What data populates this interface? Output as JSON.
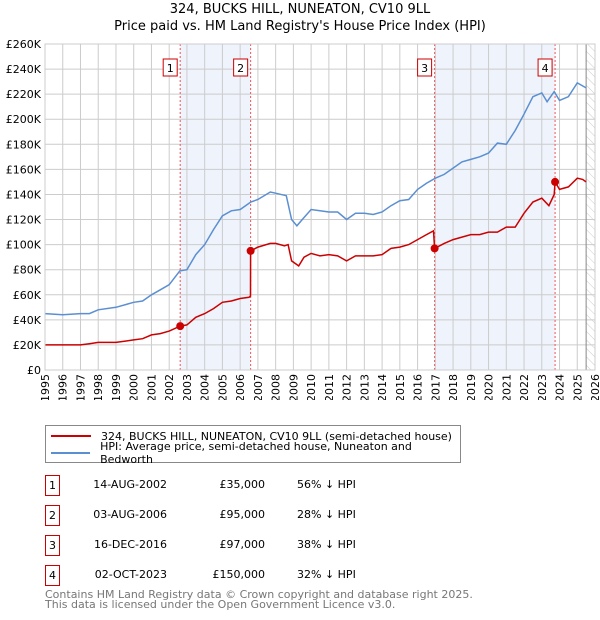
{
  "title": "324, BUCKS HILL, NUNEATON, CV10 9LL",
  "subtitle": "Price paid vs. HM Land Registry's House Price Index (HPI)",
  "colors": {
    "property": "#cc0000",
    "hpi": "#5b8fd1",
    "shade": "#eef3fc",
    "grid": "#cccccc"
  },
  "chart_data": {
    "type": "line",
    "title": "324, BUCKS HILL, NUNEATON, CV10 9LL — Price paid vs. HM Land Registry's House Price Index (HPI)",
    "xlim": [
      1995,
      2026
    ],
    "ylim": [
      0,
      260000
    ],
    "x_ticks": [
      "1995",
      "1996",
      "1997",
      "1998",
      "1999",
      "2000",
      "2001",
      "2002",
      "2003",
      "2004",
      "2005",
      "2006",
      "2007",
      "2008",
      "2009",
      "2010",
      "2011",
      "2012",
      "2013",
      "2014",
      "2015",
      "2016",
      "2017",
      "2018",
      "2019",
      "2020",
      "2021",
      "2022",
      "2023",
      "2024",
      "2025",
      "2026"
    ],
    "y_ticks": [
      {
        "v": 0,
        "label": "£0"
      },
      {
        "v": 20000,
        "label": "£20K"
      },
      {
        "v": 40000,
        "label": "£40K"
      },
      {
        "v": 60000,
        "label": "£60K"
      },
      {
        "v": 80000,
        "label": "£80K"
      },
      {
        "v": 100000,
        "label": "£100K"
      },
      {
        "v": 120000,
        "label": "£120K"
      },
      {
        "v": 140000,
        "label": "£140K"
      },
      {
        "v": 160000,
        "label": "£160K"
      },
      {
        "v": 180000,
        "label": "£180K"
      },
      {
        "v": 200000,
        "label": "£200K"
      },
      {
        "v": 220000,
        "label": "£220K"
      },
      {
        "v": 240000,
        "label": "£240K"
      },
      {
        "v": 260000,
        "label": "£260K"
      }
    ],
    "grid": true,
    "forecast_hatch_from": 2025.5,
    "shaded_ranges": [
      [
        2002.62,
        2006.59
      ],
      [
        2016.96,
        2023.75
      ]
    ],
    "series": [
      {
        "name": "324, BUCKS HILL, NUNEATON, CV10 9LL (semi-detached house)",
        "color": "#cc0000",
        "x": [
          1995,
          1996,
          1997,
          1997.5,
          1998,
          1999,
          2000,
          2000.5,
          2001,
          2001.5,
          2002,
          2002.62,
          2003,
          2003.5,
          2004,
          2004.5,
          2005,
          2005.5,
          2006,
          2006.5,
          2006.58,
          2006.59,
          2007,
          2007.7,
          2008,
          2008.5,
          2008.7,
          2008.9,
          2009.3,
          2009.6,
          2010,
          2010.5,
          2011,
          2011.5,
          2012,
          2012.5,
          2013,
          2013.5,
          2014,
          2014.5,
          2015,
          2015.5,
          2016,
          2016.5,
          2016.9,
          2016.96,
          2017.5,
          2018,
          2018.5,
          2019,
          2019.5,
          2020,
          2020.5,
          2021,
          2021.5,
          2022,
          2022.5,
          2023,
          2023.4,
          2023.7,
          2023.75,
          2024,
          2024.5,
          2025,
          2025.3,
          2025.5
        ],
        "y": [
          20000,
          20000,
          20000,
          21000,
          22000,
          22000,
          24000,
          25000,
          28000,
          29000,
          31000,
          35000,
          36000,
          42000,
          45000,
          49000,
          54000,
          55000,
          57000,
          58000,
          59000,
          95000,
          98000,
          101000,
          101000,
          99000,
          100000,
          87000,
          83000,
          90000,
          93000,
          91000,
          92000,
          91000,
          87000,
          91000,
          91000,
          91000,
          92000,
          97000,
          98000,
          100000,
          104000,
          108000,
          111000,
          97000,
          101000,
          104000,
          106000,
          108000,
          108000,
          110000,
          110000,
          114000,
          114000,
          125000,
          134000,
          137000,
          131000,
          140000,
          150000,
          144000,
          146000,
          153000,
          152000,
          150000
        ]
      },
      {
        "name": "HPI: Average price, semi-detached house, Nuneaton and Bedworth",
        "color": "#5b8fd1",
        "x": [
          1995,
          1996,
          1997,
          1997.5,
          1998,
          1999,
          2000,
          2000.5,
          2001,
          2001.5,
          2002,
          2002.6,
          2003,
          2003.5,
          2004,
          2004.5,
          2005,
          2005.5,
          2006,
          2006.6,
          2007,
          2007.7,
          2008,
          2008.6,
          2008.9,
          2009.2,
          2009.5,
          2010,
          2010.5,
          2011,
          2011.5,
          2012,
          2012.5,
          2013,
          2013.5,
          2014,
          2014.5,
          2015,
          2015.5,
          2016,
          2016.5,
          2017,
          2017.5,
          2018,
          2018.5,
          2019,
          2019.5,
          2020,
          2020.5,
          2021,
          2021.5,
          2022,
          2022.5,
          2023,
          2023.3,
          2023.7,
          2024,
          2024.5,
          2025,
          2025.5
        ],
        "y": [
          45000,
          44000,
          45000,
          45000,
          48000,
          50000,
          54000,
          55000,
          60000,
          64000,
          68000,
          79000,
          80000,
          92000,
          100000,
          112000,
          123000,
          127000,
          128000,
          134000,
          136000,
          142000,
          141000,
          139000,
          120000,
          115000,
          120000,
          128000,
          127000,
          126000,
          126000,
          120000,
          125000,
          125000,
          124000,
          126000,
          131000,
          135000,
          136000,
          144000,
          149000,
          153000,
          156000,
          161000,
          166000,
          168000,
          170000,
          173000,
          181000,
          180000,
          191000,
          204000,
          218000,
          221000,
          214000,
          222000,
          215000,
          218000,
          229000,
          225000
        ]
      }
    ],
    "legend": [
      "324, BUCKS HILL, NUNEATON, CV10 9LL (semi-detached house)",
      "HPI: Average price, semi-detached house, Nuneaton and Bedworth"
    ],
    "legend_placement": "below",
    "annotations": [
      {
        "label": "1",
        "x": 2002.62,
        "y": 35000
      },
      {
        "label": "2",
        "x": 2006.59,
        "y": 95000
      },
      {
        "label": "3",
        "x": 2016.96,
        "y": 97000
      },
      {
        "label": "4",
        "x": 2023.75,
        "y": 150000
      }
    ]
  },
  "transactions": [
    {
      "num": "1",
      "date": "14-AUG-2002",
      "price": "£35,000",
      "hpi": "56% ↓ HPI"
    },
    {
      "num": "2",
      "date": "03-AUG-2006",
      "price": "£95,000",
      "hpi": "28% ↓ HPI"
    },
    {
      "num": "3",
      "date": "16-DEC-2016",
      "price": "£97,000",
      "hpi": "38% ↓ HPI"
    },
    {
      "num": "4",
      "date": "02-OCT-2023",
      "price": "£150,000",
      "hpi": "32% ↓ HPI"
    }
  ],
  "footer": [
    "Contains HM Land Registry data © Crown copyright and database right 2025.",
    "This data is licensed under the Open Government Licence v3.0."
  ]
}
